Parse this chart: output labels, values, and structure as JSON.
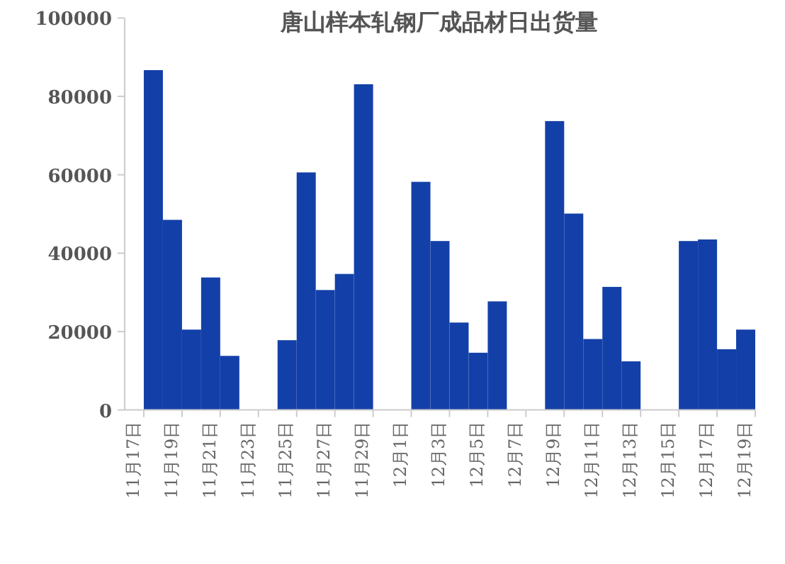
{
  "chart_data": {
    "type": "bar",
    "title": "唐山样本轧钢厂成品材日出货量",
    "categories": [
      "11月17日",
      null,
      "11月19日",
      null,
      "11月21日",
      null,
      "11月23日",
      null,
      "11月25日",
      null,
      "11月27日",
      null,
      "11月29日",
      null,
      "12月1日",
      null,
      "12月3日",
      null,
      "12月5日",
      null,
      "12月7日",
      null,
      "12月9日",
      null,
      "12月11日",
      null,
      "12月13日",
      null,
      "12月15日",
      null,
      "12月17日",
      null,
      "12月19日"
    ],
    "values": [
      null,
      86700,
      48500,
      20500,
      33800,
      13800,
      null,
      null,
      17800,
      60600,
      30600,
      34700,
      83100,
      null,
      null,
      58200,
      43100,
      22300,
      14600,
      27700,
      null,
      null,
      73700,
      50100,
      18100,
      31400,
      12400,
      null,
      null,
      43100,
      43500,
      15500,
      20500
    ],
    "color": "#1340a8",
    "ylim": [
      0,
      100000
    ],
    "yticks": [
      0,
      20000,
      40000,
      60000,
      80000,
      100000
    ],
    "grid": false
  }
}
